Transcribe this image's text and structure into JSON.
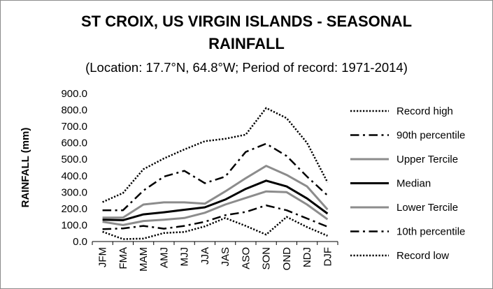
{
  "chart_data": {
    "type": "line",
    "title": "ST CROIX, US VIRGIN ISLANDS - SEASONAL RAINFALL",
    "subtitle": "(Location: 17.7°N, 64.8°W; Period of record: 1971-2014)",
    "xlabel": "",
    "ylabel": "RAINFALL (mm)",
    "ylim": [
      0,
      900
    ],
    "yticks": [
      "0.0",
      "100.0",
      "200.0",
      "300.0",
      "400.0",
      "500.0",
      "600.0",
      "700.0",
      "800.0",
      "900.0"
    ],
    "categories": [
      "JFM",
      "FMA",
      "MAM",
      "AMJ",
      "MJJ",
      "JJA",
      "JAS",
      "ASO",
      "SON",
      "OND",
      "NDJ",
      "DJF"
    ],
    "grid": false,
    "legend_position": "right",
    "series": [
      {
        "name": "Record high",
        "style": "dotted",
        "color": "#000000",
        "width": 2.5,
        "values": [
          240,
          295,
          440,
          505,
          560,
          610,
          625,
          650,
          812,
          750,
          600,
          360
        ]
      },
      {
        "name": "90th percentile",
        "style": "dashdot",
        "color": "#000000",
        "width": 2.5,
        "values": [
          190,
          190,
          310,
          395,
          430,
          355,
          395,
          545,
          595,
          520,
          395,
          280
        ]
      },
      {
        "name": "Upper Tercile",
        "style": "solid",
        "color": "#8c8c8c",
        "width": 3,
        "values": [
          145,
          145,
          225,
          238,
          238,
          230,
          305,
          385,
          460,
          405,
          335,
          195
        ]
      },
      {
        "name": "Median",
        "style": "solid",
        "color": "#000000",
        "width": 3,
        "values": [
          133,
          130,
          165,
          178,
          193,
          208,
          255,
          320,
          370,
          335,
          262,
          170
        ]
      },
      {
        "name": "Lower Tercile",
        "style": "solid",
        "color": "#8c8c8c",
        "width": 3,
        "values": [
          120,
          100,
          125,
          133,
          143,
          175,
          225,
          265,
          305,
          300,
          225,
          135
        ]
      },
      {
        "name": "10th percentile",
        "style": "dashdot",
        "color": "#000000",
        "width": 2.5,
        "values": [
          75,
          80,
          95,
          78,
          95,
          120,
          160,
          180,
          220,
          190,
          140,
          90
        ]
      },
      {
        "name": "Record low",
        "style": "dotted",
        "color": "#000000",
        "width": 2.5,
        "values": [
          60,
          15,
          18,
          52,
          58,
          92,
          143,
          95,
          42,
          150,
          88,
          35
        ]
      }
    ]
  }
}
